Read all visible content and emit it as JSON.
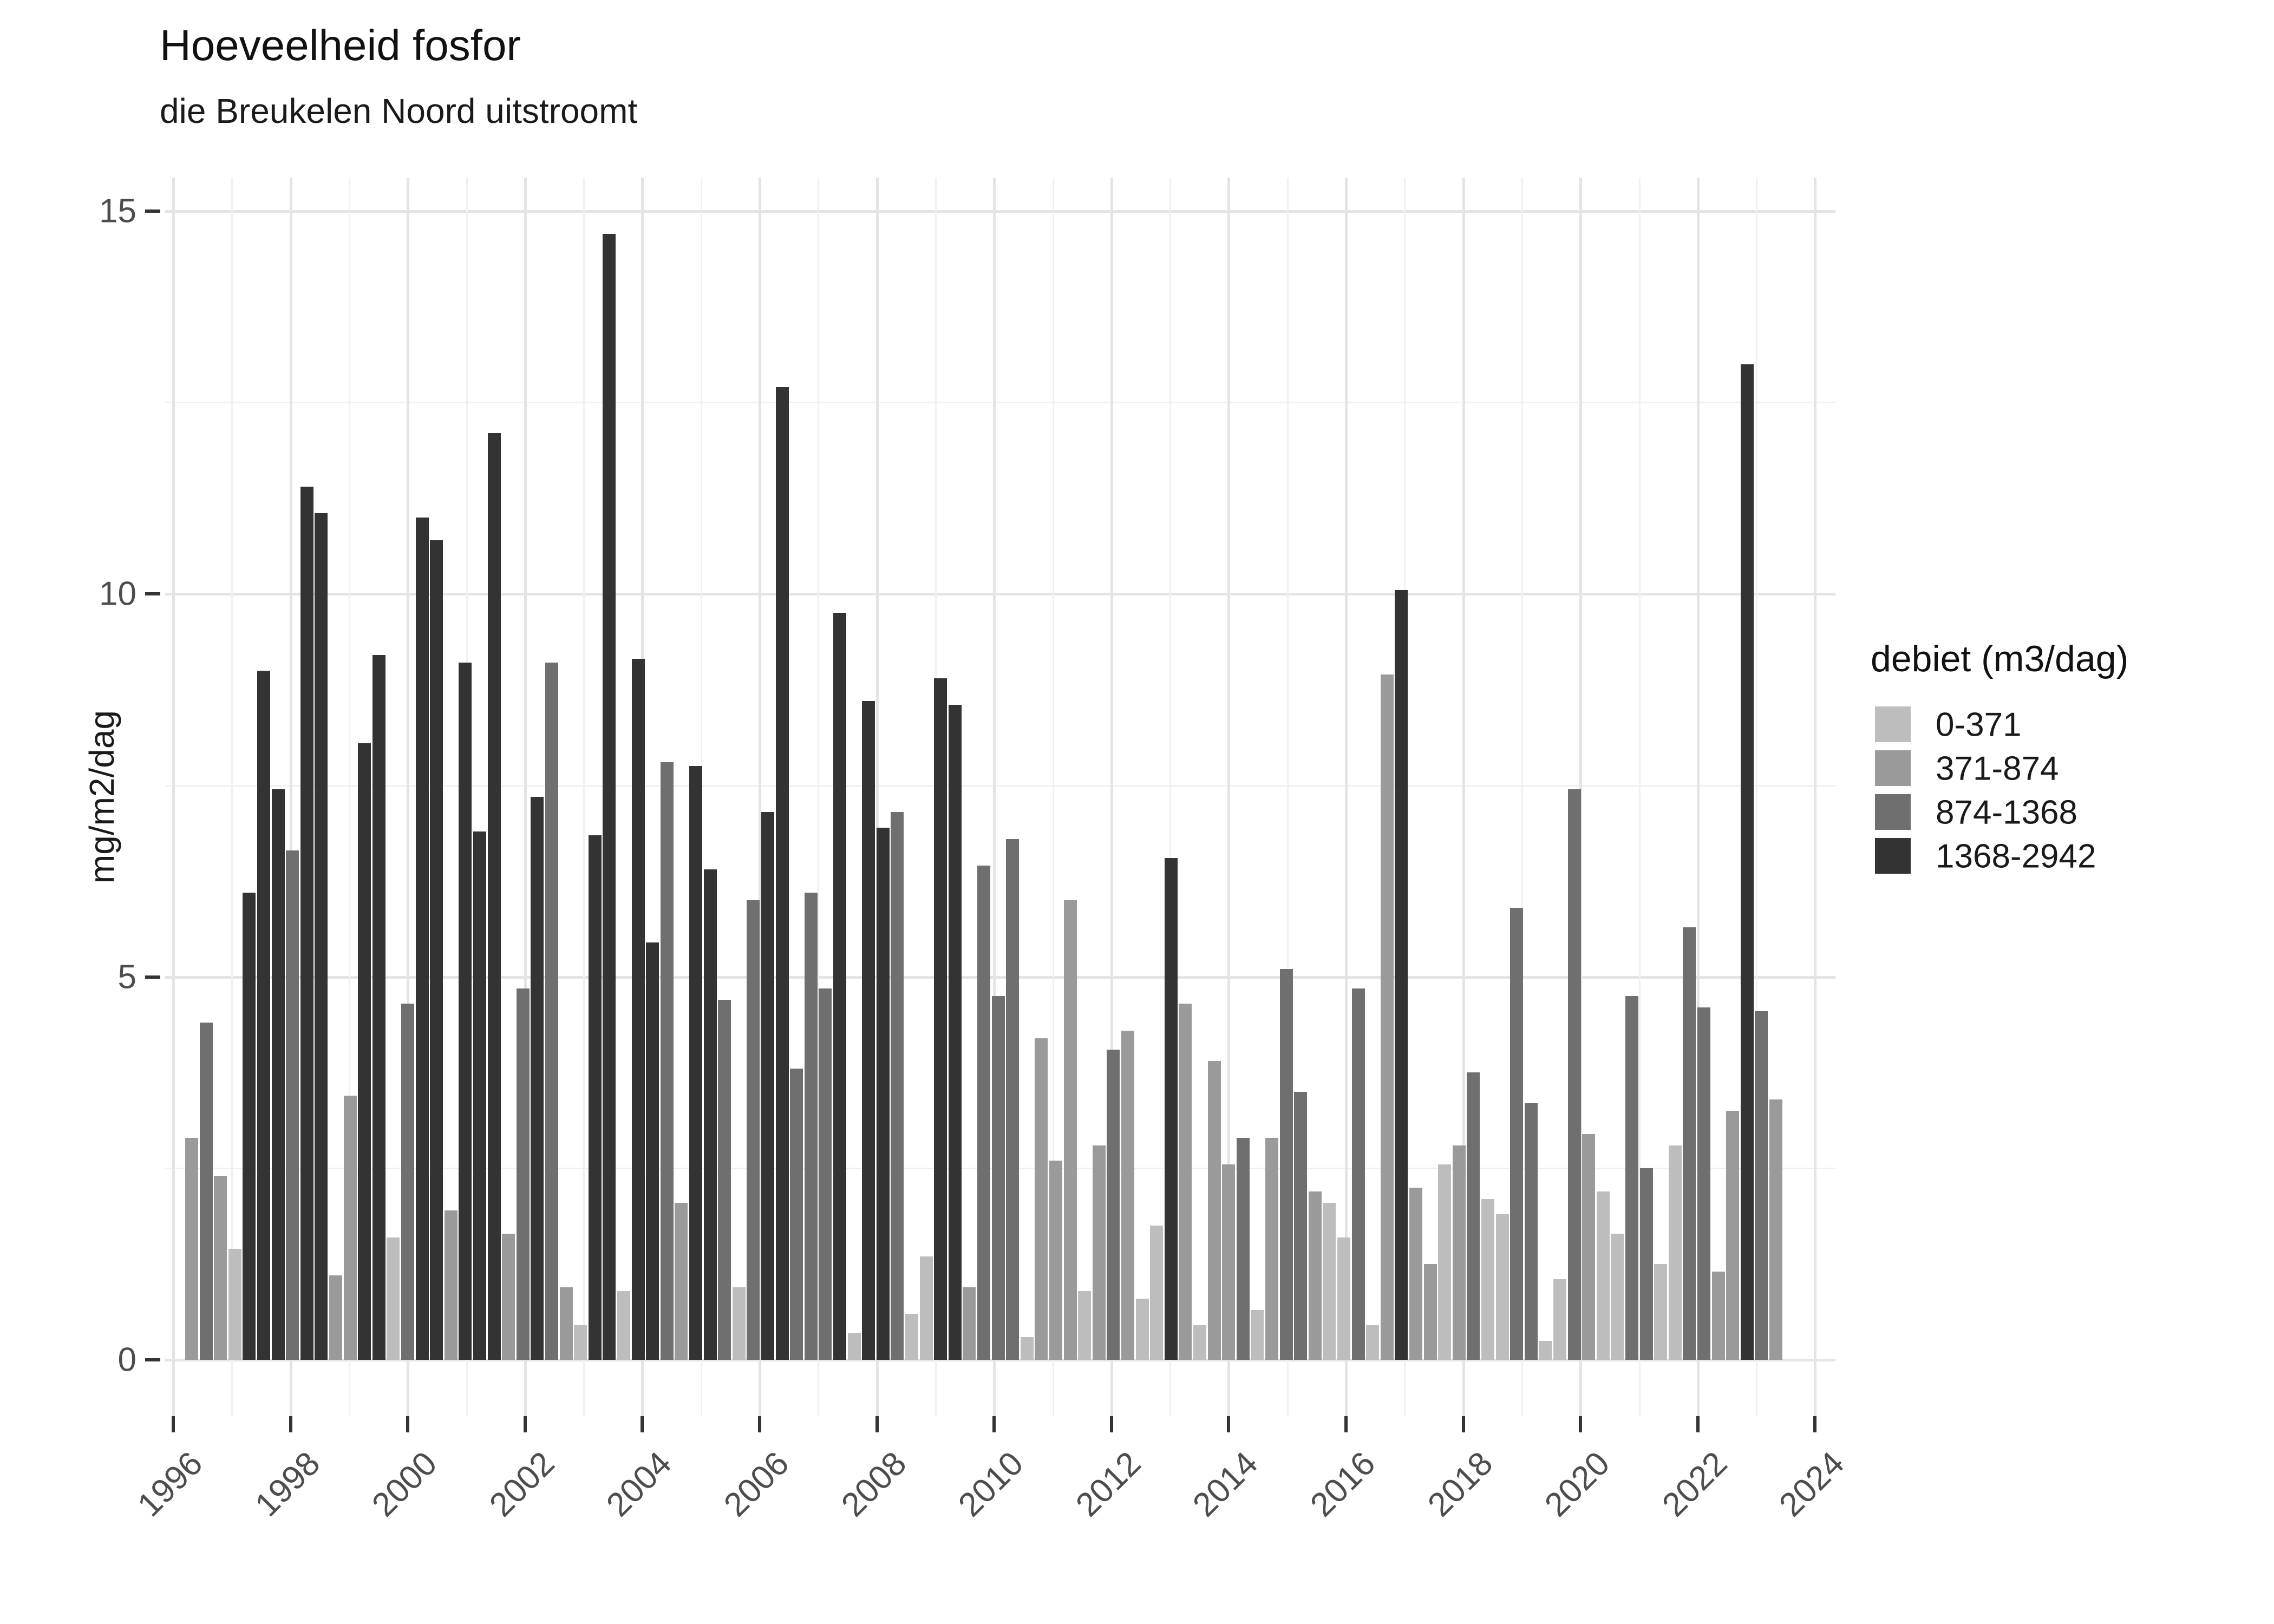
{
  "title": "Hoeveelheid fosfor",
  "subtitle": "die Breukelen Noord uitstroomt",
  "y_axis": {
    "label": "mg/m2/dag",
    "major_ticks": [
      0,
      5,
      10,
      15
    ],
    "minor_ticks": [
      2.5,
      7.5,
      12.5
    ]
  },
  "x_axis": {
    "major_ticks": [
      1996,
      1998,
      2000,
      2002,
      2004,
      2006,
      2008,
      2010,
      2012,
      2014,
      2016,
      2018,
      2020,
      2022,
      2024
    ],
    "minor_ticks": [
      1997,
      1999,
      2001,
      2003,
      2005,
      2007,
      2009,
      2011,
      2013,
      2015,
      2017,
      2019,
      2021,
      2023
    ]
  },
  "legend": {
    "title": "debiet (m3/dag)",
    "items": [
      {
        "label": "0-371",
        "color": "#bdbdbd"
      },
      {
        "label": "371-874",
        "color": "#9a9a9a"
      },
      {
        "label": "874-1368",
        "color": "#6f6f6f"
      },
      {
        "label": "1368-2942",
        "color": "#333333"
      }
    ]
  },
  "chart_data": {
    "type": "bar",
    "title": "Hoeveelheid fosfor",
    "subtitle": "die Breukelen Noord uitstroomt",
    "ylabel": "mg/m2/dag",
    "ylim": [
      0,
      15.4
    ],
    "x_range_years": [
      1996,
      2024
    ],
    "grid": "on",
    "legend_position": "right",
    "series_unit": "mg/m2/dag per quarter",
    "bin_colors": {
      "0-371": "#bdbdbd",
      "371-874": "#9a9a9a",
      "874-1368": "#6f6f6f",
      "1368-2942": "#333333"
    },
    "bin_names": [
      "0-371",
      "371-874",
      "874-1368",
      "1368-2942"
    ],
    "bars": [
      [
        "1996Q1",
        2.9,
        1
      ],
      [
        "1996Q2",
        4.4,
        2
      ],
      [
        "1996Q3",
        2.4,
        1
      ],
      [
        "1996Q4",
        1.45,
        0
      ],
      [
        "1997Q1",
        6.1,
        3
      ],
      [
        "1997Q2",
        9.0,
        3
      ],
      [
        "1997Q3",
        7.45,
        3
      ],
      [
        "1997Q4",
        6.65,
        2
      ],
      [
        "1998Q1",
        11.4,
        3
      ],
      [
        "1998Q2",
        11.05,
        3
      ],
      [
        "1998Q3",
        1.1,
        1
      ],
      [
        "1998Q4",
        3.45,
        1
      ],
      [
        "1999Q1",
        8.05,
        3
      ],
      [
        "1999Q2",
        9.2,
        3
      ],
      [
        "1999Q3",
        1.6,
        0
      ],
      [
        "1999Q4",
        4.65,
        2
      ],
      [
        "2000Q1",
        11.0,
        3
      ],
      [
        "2000Q2",
        10.7,
        3
      ],
      [
        "2000Q3",
        1.95,
        1
      ],
      [
        "2000Q4",
        9.1,
        3
      ],
      [
        "2001Q1",
        6.9,
        3
      ],
      [
        "2001Q2",
        12.1,
        3
      ],
      [
        "2001Q3",
        1.65,
        1
      ],
      [
        "2001Q4",
        4.85,
        2
      ],
      [
        "2002Q1",
        7.35,
        3
      ],
      [
        "2002Q2",
        9.1,
        2
      ],
      [
        "2002Q3",
        0.95,
        1
      ],
      [
        "2002Q4",
        0.45,
        0
      ],
      [
        "2003Q1",
        6.85,
        3
      ],
      [
        "2003Q2",
        14.7,
        3
      ],
      [
        "2003Q3",
        0.9,
        0
      ],
      [
        "2003Q4",
        9.15,
        3
      ],
      [
        "2004Q1",
        5.45,
        3
      ],
      [
        "2004Q2",
        7.8,
        2
      ],
      [
        "2004Q3",
        2.05,
        1
      ],
      [
        "2004Q4",
        7.75,
        3
      ],
      [
        "2005Q1",
        6.4,
        3
      ],
      [
        "2005Q2",
        4.7,
        2
      ],
      [
        "2005Q3",
        0.95,
        0
      ],
      [
        "2005Q4",
        6.0,
        2
      ],
      [
        "2006Q1",
        7.15,
        3
      ],
      [
        "2006Q2",
        12.7,
        3
      ],
      [
        "2006Q3",
        3.8,
        2
      ],
      [
        "2006Q4",
        6.1,
        2
      ],
      [
        "2007Q1",
        4.85,
        2
      ],
      [
        "2007Q2",
        9.75,
        3
      ],
      [
        "2007Q3",
        0.35,
        0
      ],
      [
        "2007Q4",
        8.6,
        3
      ],
      [
        "2008Q1",
        6.95,
        3
      ],
      [
        "2008Q2",
        7.15,
        2
      ],
      [
        "2008Q3",
        0.6,
        0
      ],
      [
        "2008Q4",
        1.35,
        0
      ],
      [
        "2009Q1",
        8.9,
        3
      ],
      [
        "2009Q2",
        8.55,
        3
      ],
      [
        "2009Q3",
        0.95,
        1
      ],
      [
        "2009Q4",
        6.45,
        2
      ],
      [
        "2010Q1",
        4.75,
        2
      ],
      [
        "2010Q2",
        6.8,
        2
      ],
      [
        "2010Q3",
        0.3,
        0
      ],
      [
        "2010Q4",
        4.2,
        1
      ],
      [
        "2011Q1",
        2.6,
        1
      ],
      [
        "2011Q2",
        6.0,
        1
      ],
      [
        "2011Q3",
        0.9,
        0
      ],
      [
        "2011Q4",
        2.8,
        1
      ],
      [
        "2012Q1",
        4.05,
        2
      ],
      [
        "2012Q2",
        4.3,
        1
      ],
      [
        "2012Q3",
        0.8,
        0
      ],
      [
        "2012Q4",
        1.75,
        0
      ],
      [
        "2013Q1",
        6.55,
        3
      ],
      [
        "2013Q2",
        4.65,
        1
      ],
      [
        "2013Q3",
        0.45,
        0
      ],
      [
        "2013Q4",
        3.9,
        1
      ],
      [
        "2014Q1",
        2.55,
        1
      ],
      [
        "2014Q2",
        2.9,
        2
      ],
      [
        "2014Q3",
        0.65,
        0
      ],
      [
        "2014Q4",
        2.9,
        1
      ],
      [
        "2015Q1",
        5.1,
        2
      ],
      [
        "2015Q2",
        3.5,
        2
      ],
      [
        "2015Q3",
        2.2,
        1
      ],
      [
        "2015Q4",
        2.05,
        0
      ],
      [
        "2016Q1",
        1.6,
        0
      ],
      [
        "2016Q2",
        4.85,
        2
      ],
      [
        "2016Q3",
        0.45,
        0
      ],
      [
        "2016Q4",
        8.95,
        1
      ],
      [
        "2017Q1",
        10.05,
        3
      ],
      [
        "2017Q2",
        2.25,
        1
      ],
      [
        "2017Q3",
        1.25,
        1
      ],
      [
        "2017Q4",
        2.55,
        0
      ],
      [
        "2018Q1",
        2.8,
        1
      ],
      [
        "2018Q2",
        3.75,
        2
      ],
      [
        "2018Q3",
        2.1,
        0
      ],
      [
        "2018Q4",
        1.9,
        0
      ],
      [
        "2019Q1",
        5.9,
        2
      ],
      [
        "2019Q2",
        3.35,
        2
      ],
      [
        "2019Q3",
        0.25,
        0
      ],
      [
        "2019Q4",
        1.05,
        0
      ],
      [
        "2020Q1",
        7.45,
        2
      ],
      [
        "2020Q2",
        2.95,
        1
      ],
      [
        "2020Q3",
        2.2,
        0
      ],
      [
        "2020Q4",
        1.65,
        0
      ],
      [
        "2021Q1",
        4.75,
        2
      ],
      [
        "2021Q2",
        2.5,
        2
      ],
      [
        "2021Q3",
        1.25,
        0
      ],
      [
        "2021Q4",
        2.8,
        0
      ],
      [
        "2022Q1",
        5.65,
        2
      ],
      [
        "2022Q2",
        4.6,
        2
      ],
      [
        "2022Q3",
        1.15,
        1
      ],
      [
        "2022Q4",
        3.25,
        1
      ],
      [
        "2023Q1",
        13.0,
        3
      ],
      [
        "2023Q2",
        4.55,
        2
      ],
      [
        "2023Q3",
        3.4,
        1
      ]
    ]
  }
}
